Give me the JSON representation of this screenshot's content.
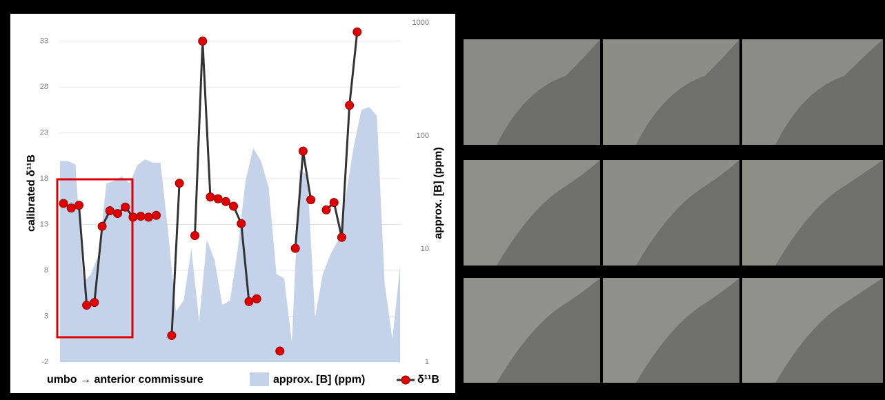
{
  "chart_data": {
    "type": "line",
    "x_label": "umbo → anterior commissure",
    "y_label": "calibrated δ¹¹B",
    "y2_label": "approx. [B] (ppm)",
    "ylim": [
      -2,
      35
    ],
    "yticks": [
      -2,
      3,
      8,
      13,
      18,
      23,
      28,
      33
    ],
    "y2lim": [
      1,
      1000
    ],
    "y2ticks": [
      1,
      10,
      100,
      1000
    ],
    "y2log": true,
    "grid": true,
    "series": [
      {
        "name": "approx. [B] (ppm)",
        "type": "area",
        "axis": "y2",
        "color": "#c5d3ea",
        "values": [
          60,
          60,
          56,
          5,
          6,
          9,
          38,
          40,
          44,
          38,
          55,
          62,
          58,
          58,
          14,
          2.8,
          3.5,
          10,
          2.3,
          12,
          8,
          3.2,
          3.5,
          10,
          40,
          78,
          60,
          35,
          6,
          5.5,
          1.5,
          50,
          45,
          2.5,
          6,
          9,
          12,
          30,
          80,
          170,
          180,
          150,
          5,
          1.6,
          7
        ]
      },
      {
        "name": "δ¹¹B",
        "type": "line",
        "color": "#e00000",
        "values": [
          15.3,
          14.8,
          15.1,
          4.2,
          4.5,
          12.8,
          14.5,
          14.2,
          14.9,
          13.8,
          13.9,
          13.8,
          14.0,
          null,
          0.9,
          17.5,
          null,
          11.8,
          33,
          16.0,
          15.8,
          15.5,
          15.0,
          13.1,
          4.6,
          4.9,
          null,
          null,
          -0.8,
          null,
          10.4,
          21,
          15.7,
          null,
          14.6,
          15.4,
          11.6,
          26,
          34
        ]
      }
    ]
  }
}
